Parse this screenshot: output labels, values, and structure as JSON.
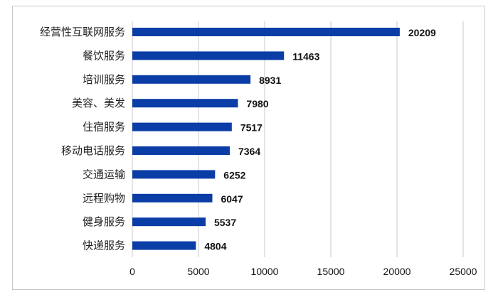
{
  "chart_data": {
    "type": "bar",
    "orientation": "horizontal",
    "categories": [
      "经营性互联网服务",
      "餐饮服务",
      "培训服务",
      "美容、美发",
      "住宿服务",
      "移动电话服务",
      "交通运输",
      "远程购物",
      "健身服务",
      "快递服务"
    ],
    "values": [
      20209,
      11463,
      8931,
      7980,
      7517,
      7364,
      6252,
      6047,
      5537,
      4804
    ],
    "title": "",
    "xlabel": "",
    "ylabel": "",
    "xlim": [
      0,
      25000
    ],
    "xticks": [
      0,
      5000,
      10000,
      15000,
      20000,
      25000
    ],
    "grid": true,
    "data_labels": true,
    "colors": {
      "bar": "#0a3da6",
      "grid": "#c8c8c8"
    }
  }
}
